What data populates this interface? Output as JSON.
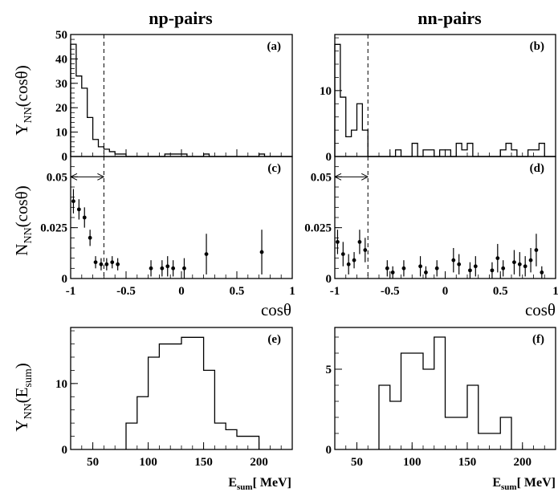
{
  "column_titles": [
    "np-pairs",
    "nn-pairs"
  ],
  "ylabels": {
    "top": {
      "main": "Y",
      "sub": "NN",
      "tail": "(cosθ)"
    },
    "mid": {
      "main": "N",
      "sub": "NN",
      "tail": "(cosθ)"
    },
    "bottom": {
      "main": "Y",
      "sub": "NN",
      "tail": "(E",
      "sub2": "sum",
      "tail2": ")"
    }
  },
  "xlabel_cos": "cosθ",
  "xlabel_esum": {
    "main": "E",
    "sub": "sum",
    "tail": "[ MeV]"
  },
  "chart_data": [
    {
      "panel": "(a)",
      "type": "histogram",
      "bin_edges": [
        -1,
        -0.95,
        -0.9,
        -0.85,
        -0.8,
        -0.75,
        -0.7,
        -0.65,
        -0.6,
        -0.55,
        -0.5,
        -0.45,
        -0.4,
        -0.35,
        -0.3,
        -0.25,
        -0.2,
        -0.15,
        -0.1,
        -0.05,
        0,
        0.05,
        0.1,
        0.15,
        0.2,
        0.25,
        0.3,
        0.35,
        0.4,
        0.45,
        0.5,
        0.55,
        0.6,
        0.65,
        0.7,
        0.75,
        0.8,
        0.85,
        0.9,
        0.95,
        1
      ],
      "values": [
        46,
        33,
        28,
        16,
        7,
        4,
        3,
        2,
        1,
        1,
        0,
        0,
        0,
        0,
        0,
        0,
        0,
        1,
        1,
        1,
        1,
        0,
        0,
        0,
        1,
        0,
        0,
        0,
        0,
        0,
        0,
        0,
        0,
        0,
        1,
        0,
        0,
        0,
        0,
        0
      ],
      "xlim": [
        -1,
        1
      ],
      "ylim": [
        0,
        50
      ],
      "yticks": [
        0,
        10,
        20,
        30,
        40,
        50
      ],
      "ytick_labels": [
        "0",
        "10",
        "20",
        "30",
        "40",
        "50"
      ],
      "xticks": [
        -1,
        -0.5,
        0,
        0.5,
        1
      ],
      "xtick_labels": [],
      "vline": -0.7
    },
    {
      "panel": "(b)",
      "type": "histogram",
      "bin_edges": [
        -1,
        -0.95,
        -0.9,
        -0.85,
        -0.8,
        -0.75,
        -0.7,
        -0.65,
        -0.6,
        -0.55,
        -0.5,
        -0.45,
        -0.4,
        -0.35,
        -0.3,
        -0.25,
        -0.2,
        -0.15,
        -0.1,
        -0.05,
        0,
        0.05,
        0.1,
        0.15,
        0.2,
        0.25,
        0.3,
        0.35,
        0.4,
        0.45,
        0.5,
        0.55,
        0.6,
        0.65,
        0.7,
        0.75,
        0.8,
        0.85,
        0.9,
        0.95,
        1
      ],
      "values": [
        17,
        9,
        3,
        4,
        8,
        4,
        0,
        0,
        0,
        0,
        0,
        1,
        0,
        0,
        2,
        0,
        1,
        1,
        0,
        1,
        1,
        0,
        2,
        1,
        2,
        0,
        0,
        0,
        0,
        0,
        1,
        2,
        1,
        0,
        0,
        1,
        1,
        2,
        0,
        0
      ],
      "xlim": [
        -1,
        1
      ],
      "ylim": [
        0,
        18.5
      ],
      "yticks": [
        0,
        10
      ],
      "ytick_labels": [
        "0",
        "10"
      ],
      "xticks": [
        -1,
        -0.5,
        0,
        0.5,
        1
      ],
      "xtick_labels": [],
      "vline": -0.7
    },
    {
      "panel": "(c)",
      "type": "scatter_errorbar",
      "x": [
        -0.975,
        -0.925,
        -0.875,
        -0.825,
        -0.775,
        -0.725,
        -0.675,
        -0.625,
        -0.575,
        -0.275,
        -0.175,
        -0.125,
        -0.075,
        0.025,
        0.225,
        0.725
      ],
      "y": [
        0.038,
        0.034,
        0.03,
        0.02,
        0.008,
        0.007,
        0.007,
        0.008,
        0.007,
        0.005,
        0.005,
        0.006,
        0.005,
        0.005,
        0.012,
        0.013
      ],
      "yerr": [
        0.006,
        0.005,
        0.005,
        0.004,
        0.003,
        0.003,
        0.003,
        0.003,
        0.003,
        0.004,
        0.004,
        0.005,
        0.004,
        0.005,
        0.01,
        0.011
      ],
      "xlim": [
        -1,
        1
      ],
      "ylim": [
        0,
        0.06
      ],
      "yticks": [
        0,
        0.025,
        0.05
      ],
      "ytick_labels": [
        "0",
        "0.025",
        "0.05"
      ],
      "xticks": [
        -1,
        -0.5,
        0,
        0.5,
        1
      ],
      "xtick_labels": [
        "-1",
        "-0.5",
        "0",
        "0.5",
        "1"
      ],
      "vline": -0.7,
      "arrow": [
        -1,
        -0.7
      ],
      "arrow_y": 0.05
    },
    {
      "panel": "(d)",
      "type": "scatter_errorbar",
      "x": [
        -0.975,
        -0.925,
        -0.875,
        -0.825,
        -0.775,
        -0.725,
        -0.525,
        -0.475,
        -0.375,
        -0.225,
        -0.175,
        -0.075,
        0.075,
        0.125,
        0.225,
        0.275,
        0.425,
        0.475,
        0.525,
        0.625,
        0.675,
        0.725,
        0.775,
        0.825,
        0.875
      ],
      "y": [
        0.018,
        0.012,
        0.007,
        0.009,
        0.018,
        0.014,
        0.005,
        0.003,
        0.005,
        0.006,
        0.003,
        0.005,
        0.009,
        0.007,
        0.004,
        0.006,
        0.004,
        0.01,
        0.005,
        0.008,
        0.007,
        0.006,
        0.009,
        0.014,
        0.003
      ],
      "yerr": [
        0.006,
        0.006,
        0.005,
        0.004,
        0.006,
        0.006,
        0.004,
        0.003,
        0.004,
        0.005,
        0.003,
        0.004,
        0.006,
        0.005,
        0.004,
        0.005,
        0.004,
        0.007,
        0.004,
        0.006,
        0.006,
        0.005,
        0.006,
        0.008,
        0.003
      ],
      "xlim": [
        -1,
        1
      ],
      "ylim": [
        0,
        0.06
      ],
      "yticks": [
        0,
        0.025,
        0.05
      ],
      "ytick_labels": [
        "0",
        "0.025",
        "0.05"
      ],
      "xticks": [
        -1,
        -0.5,
        0,
        0.5,
        1
      ],
      "xtick_labels": [
        "-1",
        "-0.5",
        "0",
        "0.5",
        "1"
      ],
      "vline": -0.7,
      "arrow": [
        -1,
        -0.7
      ],
      "arrow_y": 0.05
    },
    {
      "panel": "(e)",
      "type": "histogram",
      "bin_edges": [
        80,
        90,
        100,
        110,
        120,
        130,
        140,
        150,
        160,
        170,
        180,
        190,
        200
      ],
      "values": [
        4,
        8,
        14,
        16,
        16,
        17,
        17,
        12,
        4,
        3,
        2,
        2
      ],
      "xlim": [
        30,
        230
      ],
      "ylim": [
        0,
        18.5
      ],
      "yticks": [
        0,
        10
      ],
      "ytick_labels": [
        "0",
        "10"
      ],
      "xticks": [
        50,
        100,
        150,
        200
      ],
      "xtick_labels": [
        "50",
        "100",
        "150",
        "200"
      ]
    },
    {
      "panel": "(f)",
      "type": "histogram",
      "bin_edges": [
        70,
        80,
        90,
        100,
        110,
        120,
        130,
        140,
        150,
        160,
        170,
        180,
        190
      ],
      "values": [
        4,
        3,
        6,
        6,
        5,
        7,
        2,
        2,
        4,
        1,
        1,
        2
      ],
      "xlim": [
        30,
        230
      ],
      "ylim": [
        0,
        7.6
      ],
      "yticks": [
        0,
        5
      ],
      "ytick_labels": [
        "0",
        "5"
      ],
      "xticks": [
        50,
        100,
        150,
        200
      ],
      "xtick_labels": [
        "50",
        "100",
        "150",
        "200"
      ]
    }
  ]
}
